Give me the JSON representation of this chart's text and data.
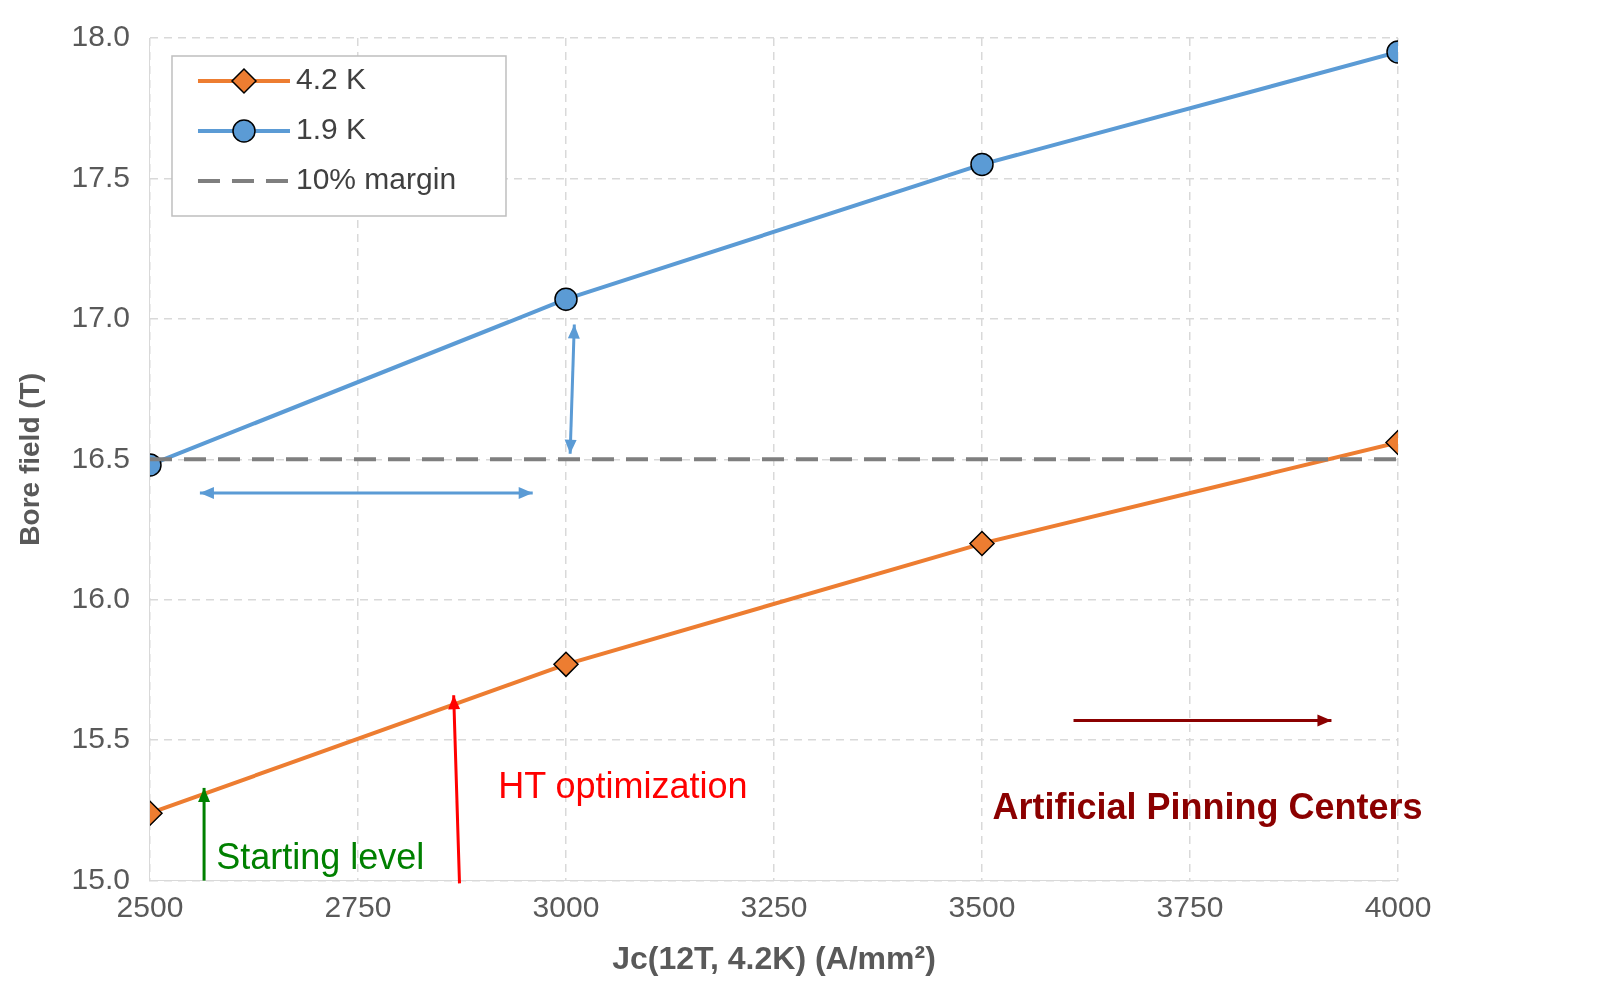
{
  "chart_data": {
    "type": "line",
    "xlabel": "Jc(12T, 4.2K) (A/mm²)",
    "ylabel": "Bore field (T)",
    "series": [
      {
        "name": "4.2 K",
        "color": "#ed7d31",
        "x": [
          2500,
          3000,
          3500,
          4000
        ],
        "values": [
          15.24,
          15.77,
          16.2,
          16.56
        ],
        "marker": "diamond"
      },
      {
        "name": "1.9 K",
        "color": "#5b9bd5",
        "x": [
          2500,
          3000,
          3500,
          4000
        ],
        "values": [
          16.48,
          17.07,
          17.55,
          17.95
        ],
        "marker": "circle"
      },
      {
        "name": "10% margin",
        "color": "#7f7f7f",
        "x": [
          2500,
          4000
        ],
        "values": [
          16.5,
          16.5
        ],
        "marker": "none",
        "line_style": "dashed"
      }
    ],
    "xlim": [
      2500,
      4000
    ],
    "xticks": [
      2500,
      2750,
      3000,
      3250,
      3500,
      3750,
      4000
    ],
    "ylim": [
      15,
      18
    ],
    "yticks": [
      {
        "value": 15,
        "label": "15.0"
      },
      {
        "value": 15.5,
        "label": "15.5"
      },
      {
        "value": 16,
        "label": "16.0"
      },
      {
        "value": 16.5,
        "label": "16.5"
      },
      {
        "value": 17,
        "label": "17.0"
      },
      {
        "value": 17.5,
        "label": "17.5"
      },
      {
        "value": 18,
        "label": "18.0"
      }
    ],
    "grid": true,
    "legend": "top left",
    "annotations": [
      "Starting level",
      "HT optimization",
      "Artificial Pinning Centers"
    ]
  }
}
